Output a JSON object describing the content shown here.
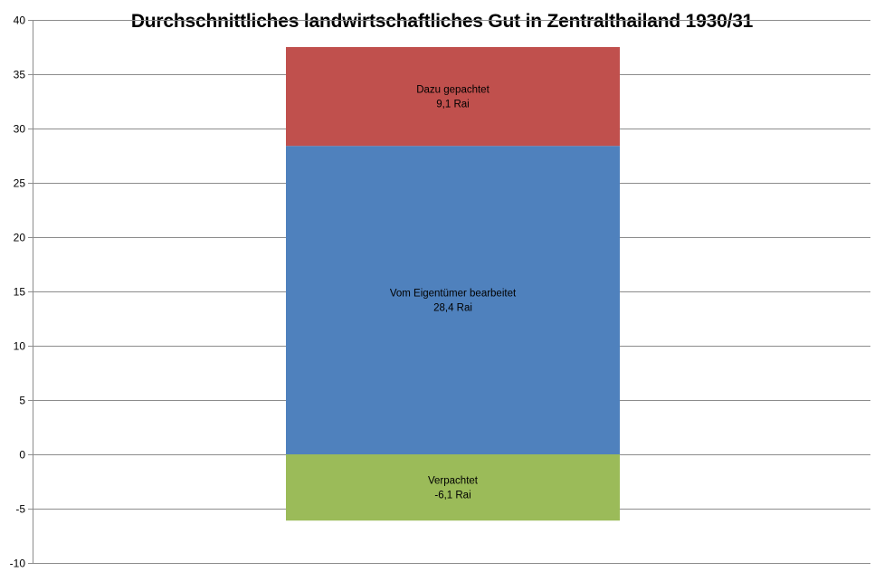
{
  "chart_data": {
    "type": "bar",
    "stacked": true,
    "title": "Durchschnittliches landwirtschaftliches Gut in Zentralthailand 1930/31",
    "xlabel": "",
    "ylabel": "",
    "ylim": [
      -10,
      40
    ],
    "yticks": [
      -10,
      -5,
      0,
      5,
      10,
      15,
      20,
      25,
      30,
      35,
      40
    ],
    "grid": true,
    "legend": "none",
    "categories": [
      ""
    ],
    "series": [
      {
        "values": [
          -6.1
        ],
        "color": "#9BBB59",
        "label_line1": "Verpachtet",
        "label_line2": "-6,1 Rai"
      },
      {
        "values": [
          28.4
        ],
        "color": "#4F81BD",
        "label_line1": "Vom Eigentümer bearbeitet",
        "label_line2": "28,4 Rai"
      },
      {
        "values": [
          9.1
        ],
        "color": "#C0504D",
        "label_line1": "Dazu gepachtet",
        "label_line2": "9,1 Rai"
      }
    ]
  }
}
